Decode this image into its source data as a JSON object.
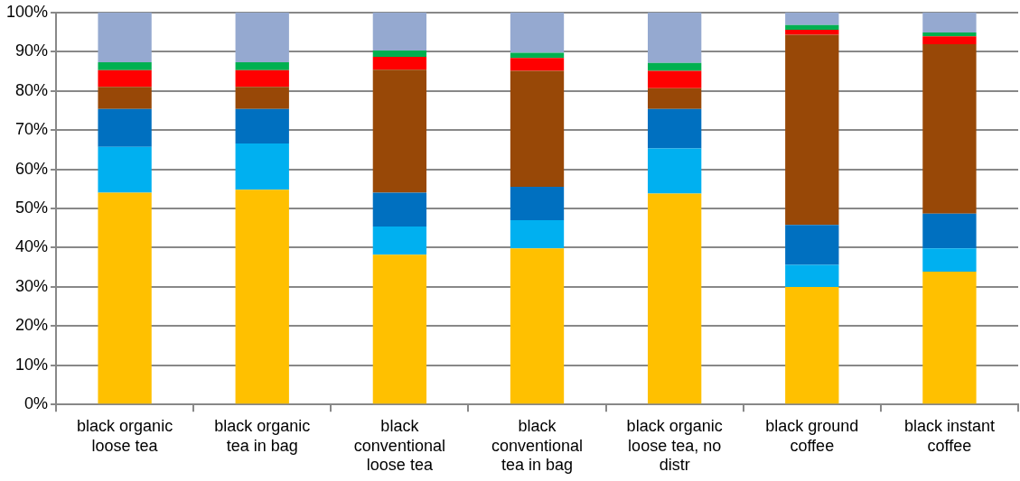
{
  "chart_data": {
    "type": "bar",
    "stacked": true,
    "grid": "y",
    "legend": false,
    "categories": [
      "black organic loose tea",
      "black organic tea in bag",
      "black conventional loose tea",
      "black conventional tea in bag",
      "black organic loose tea, no distr",
      "black ground coffee",
      "black instant coffee"
    ],
    "series": [
      {
        "color": "#ffc000",
        "values": [
          54,
          54.8,
          38.2,
          39.8,
          53.8,
          30,
          33.9
        ]
      },
      {
        "color": "#00b0f0",
        "values": [
          11.7,
          11.8,
          7.2,
          7.2,
          11.5,
          5.6,
          5.9
        ]
      },
      {
        "color": "#0070c0",
        "values": [
          9.7,
          8.8,
          8.6,
          8.5,
          10.1,
          10.2,
          8.9
        ]
      },
      {
        "color": "#984807",
        "values": [
          5.6,
          5.6,
          31.4,
          29.6,
          5.3,
          48.5,
          43.2
        ]
      },
      {
        "color": "#ff0000",
        "values": [
          4.3,
          4.3,
          3.3,
          3.3,
          4.4,
          1.3,
          2
        ]
      },
      {
        "color": "#00b050",
        "values": [
          2,
          2,
          1.6,
          1.3,
          2,
          1.2,
          1
        ]
      },
      {
        "color": "#95a9d0",
        "values": [
          12.7,
          12.7,
          9.7,
          10.3,
          12.9,
          3.2,
          5.1
        ]
      }
    ],
    "ylim": [
      0,
      100
    ],
    "yticks": [
      {
        "value": 0,
        "label": "0%"
      },
      {
        "value": 10,
        "label": "10%"
      },
      {
        "value": 20,
        "label": "20%"
      },
      {
        "value": 30,
        "label": "30%"
      },
      {
        "value": 40,
        "label": "40%"
      },
      {
        "value": 50,
        "label": "50%"
      },
      {
        "value": 60,
        "label": "60%"
      },
      {
        "value": 70,
        "label": "70%"
      },
      {
        "value": 80,
        "label": "80%"
      },
      {
        "value": 90,
        "label": "90%"
      },
      {
        "value": 100,
        "label": "100%"
      }
    ]
  }
}
